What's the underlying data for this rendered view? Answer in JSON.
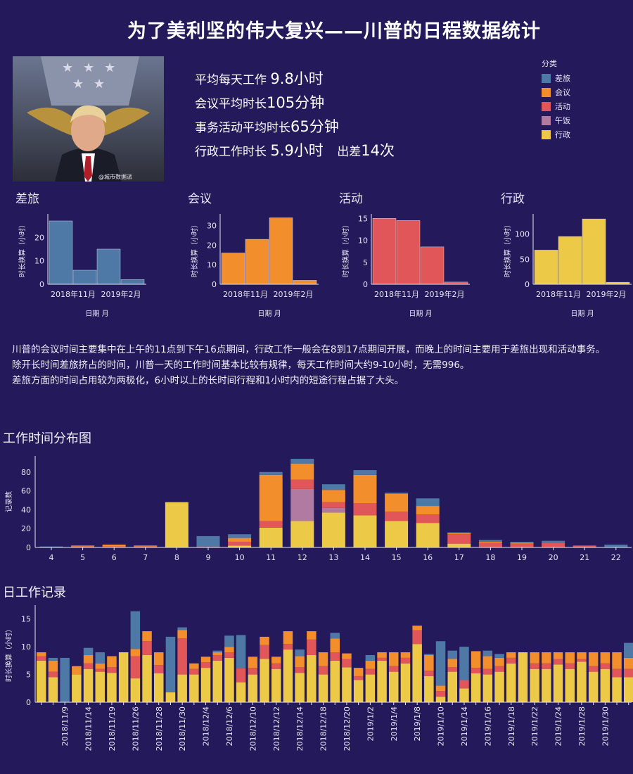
{
  "title": "为了美利坚的伟大复兴——川普的日程数据统计",
  "photo": {
    "watermark": "@城市数据派"
  },
  "stats": {
    "line1_prefix": "平均每天工作 ",
    "line1_value": "9.8小时",
    "line2_prefix": "会议平均时长",
    "line2_value": "105分钟",
    "line3_prefix": "事务活动平均时长",
    "line3_value": "65分钟",
    "line4_prefix": "行政工作时长 ",
    "line4_value": "5.9小时",
    "line4_extra_prefix": "出差",
    "line4_extra_value": "14次"
  },
  "legend": {
    "title": "分类",
    "items": [
      {
        "label": "差旅",
        "color": "#4e79a7"
      },
      {
        "label": "会议",
        "color": "#f28e2b"
      },
      {
        "label": "活动",
        "color": "#e15759"
      },
      {
        "label": "午饭",
        "color": "#b07aa1"
      },
      {
        "label": "行政",
        "color": "#edc948"
      }
    ]
  },
  "description": {
    "p1": "川普的会议时间主要集中在上午的11点到下午16点期间，行政工作一般会在8到17点期间开展，而晚上的时间主要用于差旅出现和活动事务。",
    "p2": "除开长时间差旅挤占的时间，川普一天的工作时间基本比较有规律，每天工作时间大约9-10小时，无需996。",
    "p3": "差旅方面的时间占用较为两极化，6小时以上的长时间行程和1小时内的短途行程占据了大头。"
  },
  "section_hour": "工作时间分布图",
  "section_daily": "日工作记录",
  "chart_data": [
    {
      "type": "bar",
      "title": "差旅",
      "color": "#4e79a7",
      "x_ticks": [
        "2018年11月",
        "2019年2月"
      ],
      "values": [
        27,
        6,
        15,
        2
      ],
      "ylim": [
        0,
        30
      ],
      "yticks": [
        0,
        10,
        20
      ],
      "xlabel": "日期 月",
      "ylabel": "时长换算（小时）"
    },
    {
      "type": "bar",
      "title": "会议",
      "color": "#f28e2b",
      "x_ticks": [
        "2018年11月",
        "2019年2月"
      ],
      "values": [
        16,
        23,
        34,
        2
      ],
      "ylim": [
        0,
        36
      ],
      "yticks": [
        0,
        10,
        20,
        30
      ],
      "xlabel": "日期 月",
      "ylabel": "时长换算（小时）"
    },
    {
      "type": "bar",
      "title": "活动",
      "color": "#e15759",
      "x_ticks": [
        "2018年11月",
        "2019年2月"
      ],
      "values": [
        15,
        14.5,
        8.5,
        0.5
      ],
      "ylim": [
        0,
        16
      ],
      "yticks": [
        0,
        5,
        10,
        15
      ],
      "xlabel": "日期 月",
      "ylabel": "时长换算（小时）"
    },
    {
      "type": "bar",
      "title": "行政",
      "color": "#edc948",
      "x_ticks": [
        "2018年11月",
        "2019年2月"
      ],
      "values": [
        68,
        95,
        130,
        4
      ],
      "ylim": [
        0,
        140
      ],
      "yticks": [
        0,
        50,
        100
      ],
      "xlabel": "日期 月",
      "ylabel": "时长换算（小时）"
    },
    {
      "type": "bar",
      "stacked": true,
      "title": "工作时间分布图",
      "ylabel": "记录数",
      "categories": [
        4,
        5,
        6,
        7,
        8,
        9,
        10,
        11,
        12,
        13,
        14,
        15,
        16,
        17,
        18,
        19,
        20,
        21,
        22
      ],
      "ylim": [
        0,
        97
      ],
      "yticks": [
        0,
        20,
        40,
        60,
        80
      ],
      "series": [
        {
          "name": "行政",
          "values": [
            0,
            0,
            0,
            0,
            48,
            0,
            2,
            21,
            28,
            37,
            34,
            28,
            26,
            4,
            0,
            0,
            0,
            0,
            0
          ]
        },
        {
          "name": "午饭",
          "values": [
            0,
            0,
            0,
            0,
            0,
            0,
            0,
            0,
            34,
            5,
            0,
            0,
            0,
            0,
            0,
            0,
            0,
            0,
            0
          ]
        },
        {
          "name": "活动",
          "values": [
            0,
            1,
            1,
            1,
            0,
            1,
            4,
            7,
            10,
            6,
            13,
            10,
            9,
            10,
            5,
            4,
            5,
            2,
            0
          ]
        },
        {
          "name": "会议",
          "values": [
            0,
            1,
            2,
            1,
            0,
            0,
            4,
            49,
            17,
            13,
            30,
            19,
            9,
            1,
            1,
            1,
            0,
            0,
            0
          ]
        },
        {
          "name": "差旅",
          "values": [
            1,
            0,
            0,
            0,
            0,
            11,
            4,
            3,
            5,
            6,
            5,
            1,
            8,
            1,
            2,
            1,
            2,
            0,
            3
          ]
        }
      ]
    },
    {
      "type": "bar",
      "stacked": true,
      "title": "日工作记录",
      "ylabel": "时长换算（小时）",
      "ylim": [
        0,
        17.5
      ],
      "yticks": [
        0,
        5,
        10,
        15
      ],
      "x_tick_labels": [
        "2018/11/9",
        "2018/11/14",
        "2018/11/19",
        "2018/11/26",
        "2018/11/28",
        "2018/11/30",
        "2018/12/4",
        "2018/12/6",
        "2018/12/10",
        "2018/12/12",
        "2018/12/14",
        "2018/12/18",
        "2018/12/20",
        "2019/1/2",
        "2019/1/4",
        "2019/1/8",
        "2019/1/10",
        "2019/1/14",
        "2019/1/16",
        "2019/1/18",
        "2019/1/22",
        "2019/1/24",
        "2019/1/28",
        "2019/1/30"
      ],
      "days": [
        [
          7.5,
          0,
          0.8,
          0.7,
          0
        ],
        [
          4.5,
          0,
          1.0,
          2.0,
          0.5
        ],
        [
          0,
          0,
          0,
          0,
          8
        ],
        [
          5,
          0,
          0,
          1.5,
          0
        ],
        [
          6,
          0,
          1.0,
          1.5,
          1.3
        ],
        [
          5.5,
          0,
          0.5,
          1.0,
          2
        ],
        [
          5.3,
          0,
          1.0,
          2.0,
          0
        ],
        [
          9,
          0,
          0,
          0,
          0
        ],
        [
          4.3,
          0,
          4,
          1.3,
          6.8
        ],
        [
          8.5,
          0,
          2.5,
          1.8,
          0
        ],
        [
          5.2,
          0,
          1.5,
          2.3,
          0
        ],
        [
          1.8,
          0,
          0,
          0,
          10
        ],
        [
          5,
          0,
          6.5,
          1.5,
          0.5
        ],
        [
          5,
          0,
          1.0,
          1.0,
          0
        ],
        [
          6.2,
          0,
          1.0,
          1.0,
          0
        ],
        [
          7.5,
          0,
          1.0,
          0.5,
          0.3
        ],
        [
          8,
          0,
          1.0,
          1.0,
          2
        ],
        [
          3.6,
          0,
          2.5,
          0,
          6
        ],
        [
          5,
          0,
          1.2,
          2.0,
          0
        ],
        [
          7.8,
          0,
          2.5,
          1.5,
          0
        ],
        [
          6,
          0,
          1.0,
          1.2,
          0
        ],
        [
          9.5,
          0,
          1.0,
          2.3,
          0
        ],
        [
          5.3,
          0,
          1.0,
          2.0,
          1.2
        ],
        [
          8.5,
          0,
          2.8,
          1.5,
          0
        ],
        [
          5,
          0,
          1.5,
          2.5,
          0
        ],
        [
          7.5,
          0,
          1.5,
          2.5,
          1
        ],
        [
          6.3,
          0,
          1.5,
          1.0,
          0
        ],
        [
          4,
          0,
          0.7,
          1.5,
          0
        ],
        [
          5,
          0,
          1.0,
          1.5,
          1
        ],
        [
          7.5,
          0,
          0.5,
          1.0,
          0
        ],
        [
          5.5,
          0,
          1.0,
          2.5,
          0
        ],
        [
          7,
          0,
          1.0,
          1.0,
          0
        ],
        [
          10.5,
          0,
          2.5,
          0.8,
          0
        ],
        [
          4.7,
          0,
          1.0,
          2.8,
          0.2
        ],
        [
          1,
          0,
          1.0,
          1.0,
          8
        ],
        [
          5.5,
          0,
          0.8,
          1.5,
          1.5
        ],
        [
          2.5,
          0,
          1.5,
          0,
          6
        ],
        [
          5.2,
          0,
          1.0,
          3.0,
          0
        ],
        [
          5,
          0,
          1.0,
          2.3,
          1
        ],
        [
          5.5,
          0,
          1.0,
          1.5,
          0.7
        ],
        [
          7,
          0,
          1.0,
          1.0,
          0
        ],
        [
          9,
          0,
          0,
          0,
          0
        ],
        [
          6,
          0,
          1.0,
          2.0,
          0
        ],
        [
          6,
          0,
          1.0,
          2.0,
          0
        ],
        [
          6.8,
          0,
          1.0,
          1.2,
          0
        ],
        [
          6,
          0,
          1.0,
          2.0,
          0
        ],
        [
          7.3,
          0,
          0.5,
          1.2,
          0
        ],
        [
          5.5,
          0,
          1.0,
          2.5,
          0
        ],
        [
          6,
          0,
          1.0,
          2.0,
          0
        ],
        [
          4.5,
          0,
          1.5,
          3.0,
          0
        ],
        [
          4.5,
          0,
          1.5,
          2.0,
          2.7
        ]
      ]
    }
  ]
}
